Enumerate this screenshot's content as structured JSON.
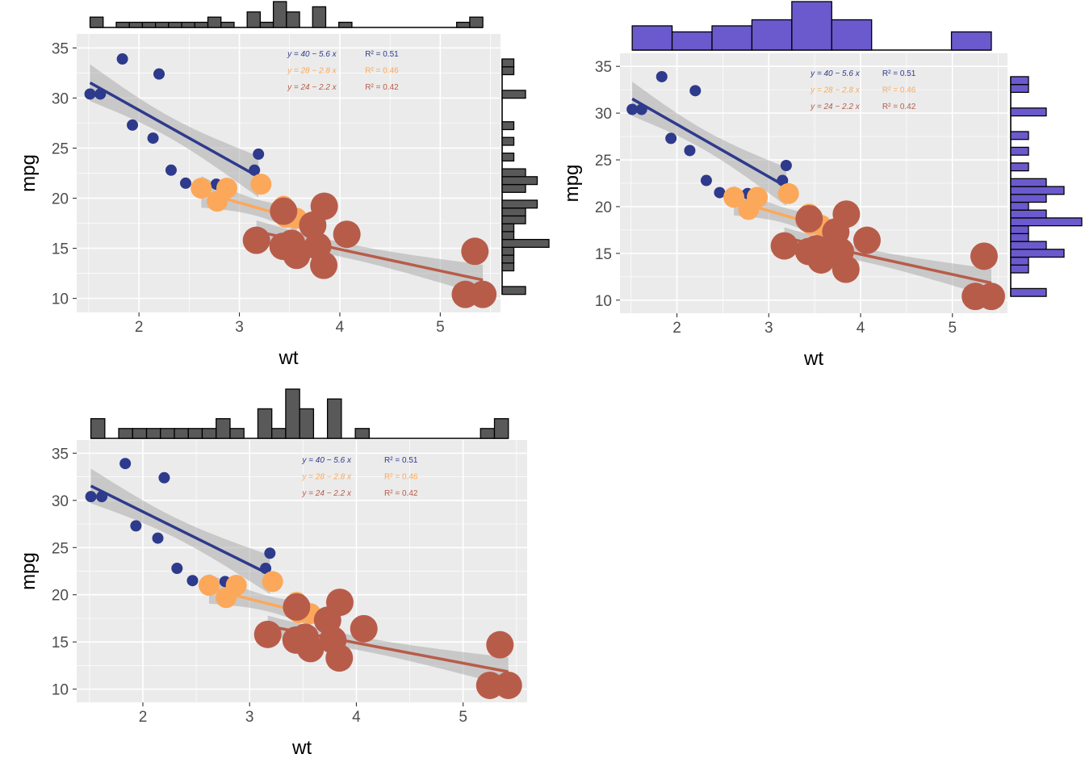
{
  "colors": {
    "panel_bg": "#EBEBEB",
    "grid": "#FFFFFF",
    "ribbon": "#A6A6A6",
    "histogram_dark": "#595959",
    "histogram_purple": "#6A5ACD",
    "group_light": "#2E3A8C",
    "group_mid": "#FCA85A",
    "group_heavy": "#B85C4A"
  },
  "chart_data": [
    {
      "type": "scatter",
      "histogram_style": "dark-narrow-bins",
      "xlabel": "wt",
      "ylabel": "mpg",
      "xlim": [
        1.38,
        5.6
      ],
      "ylim": [
        8.6,
        36.4
      ],
      "x_ticks": [
        "2",
        "3",
        "4",
        "5"
      ],
      "y_ticks": [
        "10",
        "15",
        "20",
        "25",
        "30",
        "35"
      ],
      "grid": true,
      "annotations": [
        {
          "equation": "y = 40 − 5.6 x",
          "r2": "R² = 0.51",
          "color": "#2E3A8C"
        },
        {
          "equation": "y = 28 − 2.8 x",
          "r2": "R² = 0.46",
          "color": "#FCA85A"
        },
        {
          "equation": "y = 24 − 2.2 x",
          "r2": "R² = 0.42",
          "color": "#B85C4A"
        }
      ]
    },
    {
      "type": "scatter",
      "histogram_style": "purple-wide-bins",
      "xlabel": "wt",
      "ylabel": "mpg",
      "xlim": [
        1.38,
        5.6
      ],
      "ylim": [
        8.6,
        36.4
      ],
      "x_ticks": [
        "2",
        "3",
        "4",
        "5"
      ],
      "y_ticks": [
        "10",
        "15",
        "20",
        "25",
        "30",
        "35"
      ],
      "grid": true,
      "annotations": [
        {
          "equation": "y = 40 − 5.6 x",
          "r2": "R² = 0.51",
          "color": "#2E3A8C"
        },
        {
          "equation": "y = 28 − 2.8 x",
          "r2": "R² = 0.46",
          "color": "#FCA85A"
        },
        {
          "equation": "y = 24 − 2.2 x",
          "r2": "R² = 0.42",
          "color": "#B85C4A"
        }
      ]
    },
    {
      "type": "scatter",
      "histogram_style": "dark-narrow-bins-top-only",
      "xlabel": "wt",
      "ylabel": "mpg",
      "xlim": [
        1.38,
        5.6
      ],
      "ylim": [
        8.6,
        36.4
      ],
      "x_ticks": [
        "2",
        "3",
        "4",
        "5"
      ],
      "y_ticks": [
        "10",
        "15",
        "20",
        "25",
        "30",
        "35"
      ],
      "grid": true,
      "annotations": [
        {
          "equation": "y = 40 − 5.6 x",
          "r2": "R² = 0.51",
          "color": "#2E3A8C"
        },
        {
          "equation": "y = 28 − 2.8 x",
          "r2": "R² = 0.46",
          "color": "#FCA85A"
        },
        {
          "equation": "y = 24 − 2.2 x",
          "r2": "R² = 0.42",
          "color": "#B85C4A"
        }
      ]
    }
  ],
  "series": [
    {
      "color": "#2E3A8C",
      "size": "small",
      "points": [
        [
          1.513,
          30.4
        ],
        [
          1.615,
          30.4
        ],
        [
          1.835,
          33.9
        ],
        [
          1.935,
          27.3
        ],
        [
          2.14,
          26.0
        ],
        [
          2.2,
          32.4
        ],
        [
          2.32,
          22.8
        ],
        [
          2.465,
          21.5
        ],
        [
          2.77,
          21.4
        ],
        [
          3.15,
          22.8
        ],
        [
          3.19,
          24.4
        ]
      ],
      "fit": {
        "intercept": 40.0,
        "slope": -5.6,
        "x_range": [
          1.513,
          3.19
        ]
      }
    },
    {
      "color": "#FCA85A",
      "size": "medium",
      "points": [
        [
          2.62,
          21.0
        ],
        [
          2.78,
          19.7
        ],
        [
          2.875,
          21.0
        ],
        [
          3.215,
          21.4
        ],
        [
          3.44,
          18.7
        ],
        [
          3.44,
          19.2
        ],
        [
          3.46,
          18.1
        ],
        [
          3.57,
          18.0
        ]
      ],
      "fit": {
        "intercept": 28.1,
        "slope": -2.85,
        "x_range": [
          2.62,
          3.57
        ]
      }
    },
    {
      "color": "#B85C4A",
      "size": "large",
      "points": [
        [
          3.17,
          15.8
        ],
        [
          3.435,
          15.2
        ],
        [
          3.44,
          18.7
        ],
        [
          3.52,
          15.5
        ],
        [
          3.57,
          14.3
        ],
        [
          3.73,
          17.3
        ],
        [
          3.78,
          15.2
        ],
        [
          3.84,
          13.3
        ],
        [
          3.845,
          19.2
        ],
        [
          4.07,
          16.4
        ],
        [
          5.25,
          10.4
        ],
        [
          5.345,
          14.7
        ],
        [
          5.424,
          10.4
        ]
      ],
      "fit": {
        "intercept": 23.5,
        "slope": -2.15,
        "x_range": [
          3.17,
          5.424
        ]
      }
    }
  ]
}
